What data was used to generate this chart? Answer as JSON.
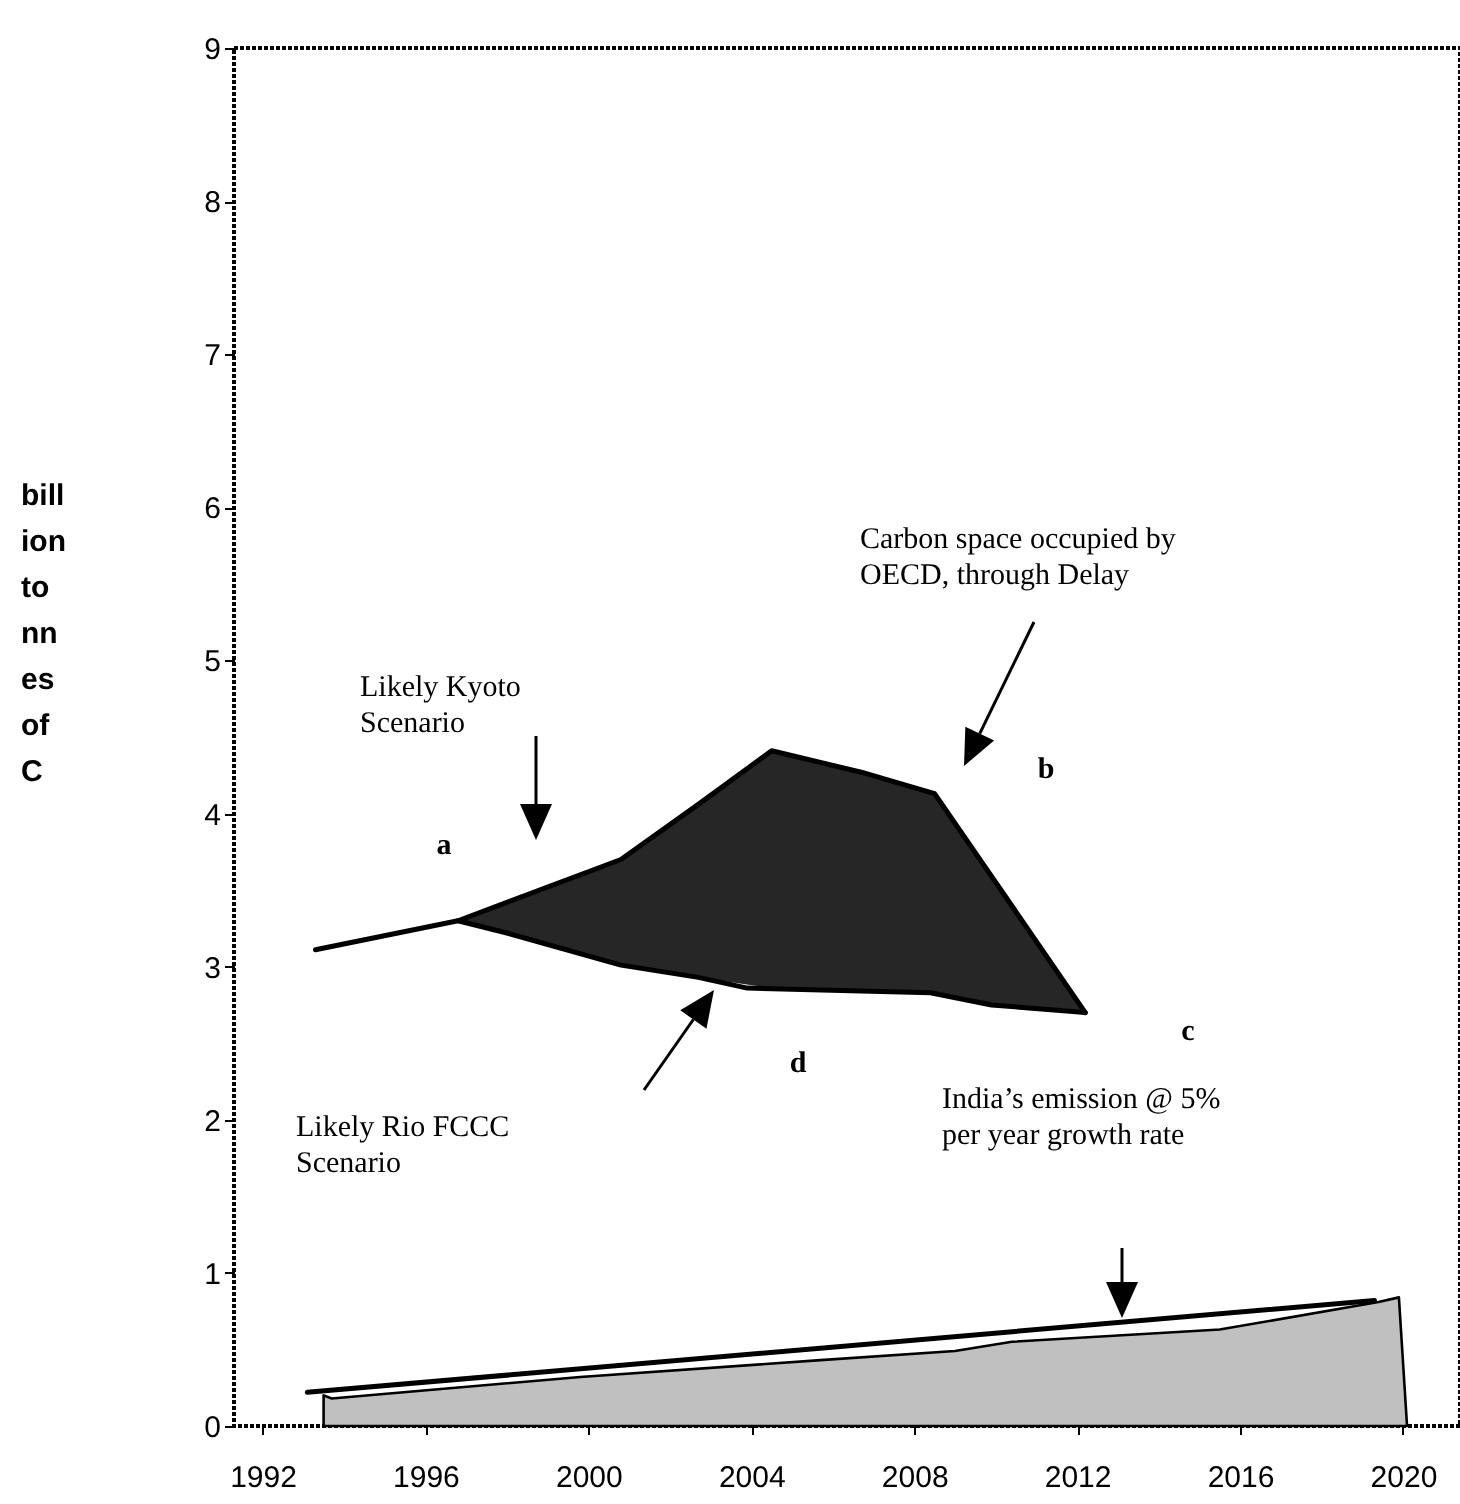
{
  "chart_data": {
    "type": "line",
    "ylabel": "bill\nion\nto\nnn\nes\nof\nC",
    "xlim": [
      1991.3,
      2021.4
    ],
    "xticks": [
      1992,
      1996,
      2000,
      2004,
      2008,
      2012,
      2016,
      2020
    ],
    "ylim": [
      0,
      9
    ],
    "yticks": [
      0,
      1,
      2,
      3,
      4,
      5,
      6,
      7,
      8,
      9
    ],
    "series": [
      {
        "color": "#000000",
        "x": [
          1993.3,
          1996.8,
          1998.0,
          2000.8,
          2002.7,
          2004.5,
          2006.7,
          2008.5,
          2009.9,
          2012.2
        ],
        "values": [
          3.11,
          3.3,
          3.42,
          3.7,
          4.06,
          4.41,
          4.27,
          4.13,
          3.59,
          2.7
        ],
        "lower": [
          null,
          3.3,
          3.22,
          3.01,
          2.93,
          2.86,
          2.84,
          2.83,
          2.75,
          2.7
        ],
        "upper": [
          null,
          3.3,
          3.42,
          3.7,
          4.06,
          4.41,
          4.27,
          4.13,
          3.59,
          2.7
        ]
      },
      {
        "color": "#000000",
        "x": [
          1996.8,
          1998.0,
          2000.8,
          2002.7,
          2003.9,
          2008.4,
          2009.9,
          2012.2
        ],
        "values": [
          3.3,
          3.22,
          3.01,
          2.93,
          2.86,
          2.83,
          2.75,
          2.7
        ]
      },
      {
        "type": "area",
        "color": "#c0c0c0",
        "x": [
          1993.5,
          1993.7,
          1999.8,
          2005.7,
          2009.0,
          2010.4,
          2015.5,
          2019.4,
          2019.9,
          2020.1
        ],
        "values": [
          0.2,
          0.18,
          0.32,
          0.43,
          0.49,
          0.55,
          0.63,
          0.81,
          0.84,
          0
        ]
      },
      {
        "type": "line",
        "color": "#000000",
        "x": [
          1993.1,
          2019.3
        ],
        "values": [
          0.22,
          0.82
        ]
      }
    ],
    "annotations": [
      "Likely Kyoto\nScenario",
      "Carbon space occupied by\nOECD, through Delay",
      "Likely Rio FCCC\nScenario",
      "India’s emission @ 5%\nper year growth rate",
      "a",
      "b",
      "c",
      "d"
    ]
  }
}
